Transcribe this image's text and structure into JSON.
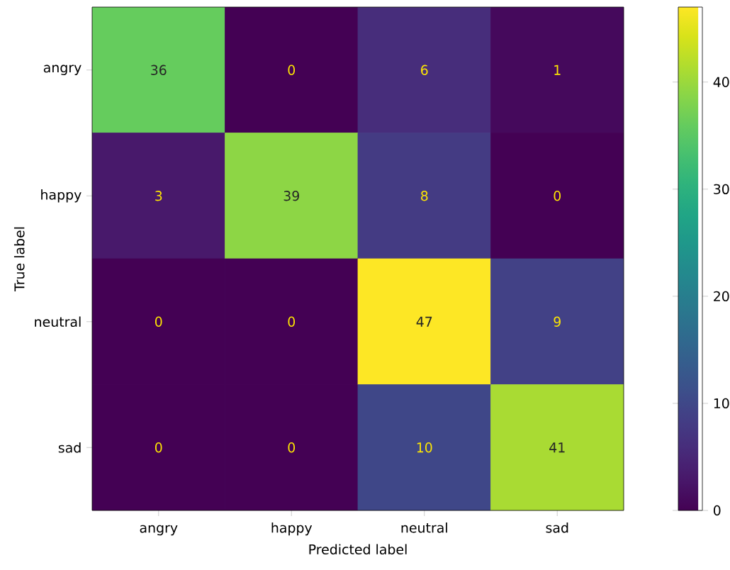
{
  "chart_data": {
    "type": "heatmap",
    "xlabel": "Predicted label",
    "ylabel": "True label",
    "categories": [
      "angry",
      "happy",
      "neutral",
      "sad"
    ],
    "y_categories": [
      "angry",
      "happy",
      "neutral",
      "sad"
    ],
    "cells": [
      [
        36,
        0,
        6,
        1
      ],
      [
        3,
        39,
        8,
        0
      ],
      [
        0,
        0,
        47,
        9
      ],
      [
        0,
        0,
        10,
        41
      ]
    ],
    "clim": [
      0,
      47
    ],
    "cticks": [
      0,
      10,
      20,
      30,
      40
    ],
    "grid": false,
    "data_labels": true
  }
}
